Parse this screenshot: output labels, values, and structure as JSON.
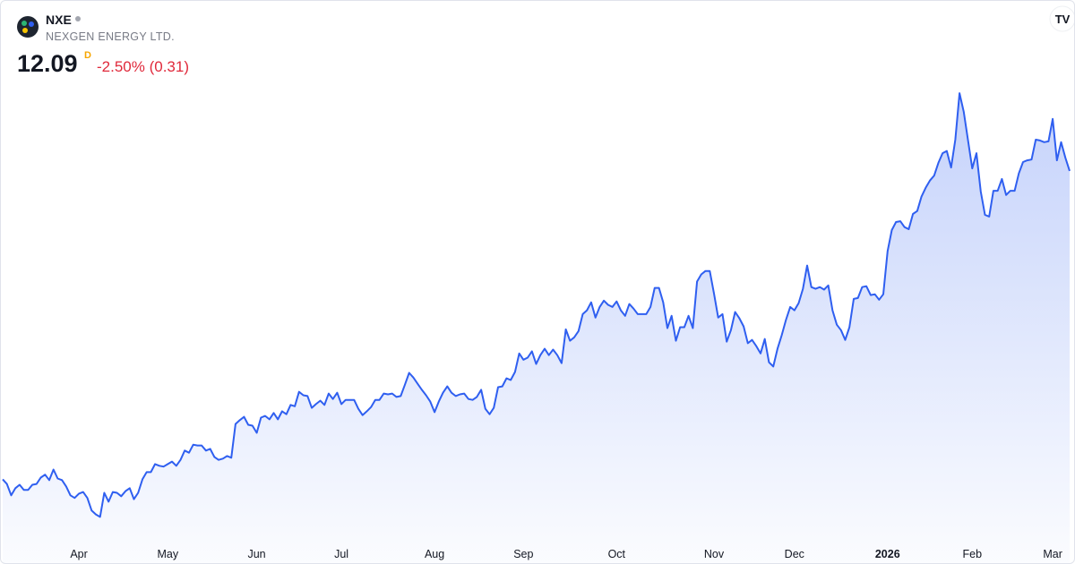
{
  "header": {
    "symbol": "NXE",
    "name": "NEXGEN ENERGY LTD.",
    "price": "12.09",
    "interval": "D",
    "change": "-2.50% (0.31)"
  },
  "chart_data": {
    "type": "area",
    "color": "#2f5ff0",
    "values": [
      4.79,
      4.68,
      4.41,
      4.58,
      4.66,
      4.54,
      4.54,
      4.66,
      4.68,
      4.83,
      4.9,
      4.77,
      5.02,
      4.81,
      4.77,
      4.62,
      4.41,
      4.35,
      4.45,
      4.49,
      4.35,
      4.05,
      3.96,
      3.9,
      4.47,
      4.26,
      4.49,
      4.47,
      4.39,
      4.51,
      4.58,
      4.32,
      4.47,
      4.79,
      4.96,
      4.96,
      5.15,
      5.11,
      5.09,
      5.15,
      5.21,
      5.11,
      5.25,
      5.47,
      5.42,
      5.61,
      5.59,
      5.59,
      5.47,
      5.51,
      5.32,
      5.25,
      5.28,
      5.34,
      5.3,
      6.1,
      6.19,
      6.27,
      6.08,
      6.06,
      5.89,
      6.25,
      6.29,
      6.21,
      6.36,
      6.21,
      6.4,
      6.33,
      6.55,
      6.52,
      6.86,
      6.78,
      6.76,
      6.48,
      6.57,
      6.65,
      6.55,
      6.82,
      6.69,
      6.84,
      6.57,
      6.67,
      6.67,
      6.67,
      6.46,
      6.31,
      6.4,
      6.5,
      6.67,
      6.67,
      6.82,
      6.8,
      6.82,
      6.74,
      6.76,
      7.03,
      7.31,
      7.2,
      7.05,
      6.91,
      6.78,
      6.63,
      6.38,
      6.63,
      6.84,
      6.99,
      6.84,
      6.76,
      6.8,
      6.82,
      6.69,
      6.67,
      6.74,
      6.91,
      6.46,
      6.33,
      6.48,
      6.97,
      6.99,
      7.18,
      7.14,
      7.33,
      7.77,
      7.62,
      7.67,
      7.82,
      7.52,
      7.73,
      7.88,
      7.73,
      7.86,
      7.73,
      7.54,
      8.34,
      8.07,
      8.15,
      8.3,
      8.7,
      8.79,
      8.98,
      8.62,
      8.87,
      9.02,
      8.92,
      8.87,
      9.0,
      8.79,
      8.66,
      8.94,
      8.83,
      8.7,
      8.7,
      8.7,
      8.87,
      9.32,
      9.32,
      8.98,
      8.37,
      8.66,
      8.07,
      8.39,
      8.39,
      8.66,
      8.37,
      9.47,
      9.64,
      9.72,
      9.72,
      9.19,
      8.62,
      8.7,
      8.05,
      8.32,
      8.75,
      8.6,
      8.41,
      8.01,
      8.09,
      7.94,
      7.77,
      8.11,
      7.56,
      7.46,
      7.88,
      8.2,
      8.56,
      8.87,
      8.79,
      8.96,
      9.3,
      9.85,
      9.34,
      9.3,
      9.34,
      9.28,
      9.38,
      8.79,
      8.45,
      8.32,
      8.09,
      8.39,
      9.06,
      9.08,
      9.34,
      9.36,
      9.15,
      9.17,
      9.04,
      9.17,
      10.19,
      10.69,
      10.88,
      10.9,
      10.76,
      10.71,
      11.07,
      11.14,
      11.48,
      11.69,
      11.86,
      11.98,
      12.28,
      12.51,
      12.56,
      12.17,
      12.83,
      13.93,
      13.49,
      12.81,
      12.15,
      12.51,
      11.6,
      11.05,
      11.01,
      11.62,
      11.62,
      11.9,
      11.52,
      11.62,
      11.62,
      12.03,
      12.3,
      12.34,
      12.36,
      12.83,
      12.81,
      12.77,
      12.79,
      13.32,
      12.34,
      12.77,
      12.4,
      12.09
    ],
    "ylim": [
      3.4,
      14.8
    ],
    "xlim": [
      0,
      252
    ],
    "xticks": [
      {
        "value": 18,
        "label": "Apr"
      },
      {
        "value": 39,
        "label": "May"
      },
      {
        "value": 60,
        "label": "Jun"
      },
      {
        "value": 80,
        "label": "Jul"
      },
      {
        "value": 102,
        "label": "Aug"
      },
      {
        "value": 123,
        "label": "Sep"
      },
      {
        "value": 145,
        "label": "Oct"
      },
      {
        "value": 168,
        "label": "Nov"
      },
      {
        "value": 187,
        "label": "Dec"
      },
      {
        "value": 209,
        "label": "2026"
      },
      {
        "value": 229,
        "label": "Feb"
      },
      {
        "value": 248,
        "label": "Mar"
      }
    ]
  }
}
